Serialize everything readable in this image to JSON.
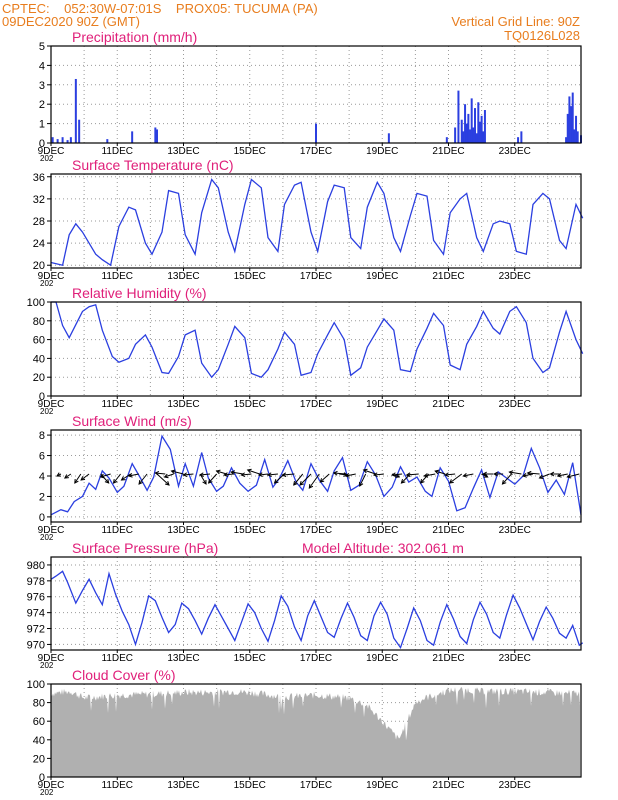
{
  "header": {
    "line1": "CPTEC:    052:30W-07:01S    PROX05: TUCUMA (PA)",
    "line2": "09DEC2020 90Z (GMT)",
    "grid_note": "Vertical Grid Line: 90Z",
    "code": "TQ0126L028"
  },
  "colors": {
    "header": "#e87d1e",
    "title": "#e0207a",
    "series": "#2b3fe0",
    "cloud": "#b0b0b0",
    "grid": "#9a9a9a"
  },
  "x_ticks": [
    "9DEC",
    "11DEC",
    "13DEC",
    "15DEC",
    "17DEC",
    "19DEC",
    "21DEC",
    "23DEC"
  ],
  "year_stub": "202",
  "chart_data": [
    {
      "type": "bar",
      "title": "Precipitation (mm/h)",
      "ylim": [
        0,
        5
      ],
      "yticks": [
        "0",
        "1",
        "2",
        "3",
        "4",
        "5"
      ],
      "x_days": [
        0.05,
        0.2,
        0.35,
        0.5,
        0.6,
        0.75,
        0.85,
        1.7,
        2.45,
        3.15,
        3.2,
        8.0,
        10.2,
        11.95,
        12.2,
        12.3,
        12.4,
        12.45,
        12.5,
        12.55,
        12.6,
        12.65,
        12.7,
        12.75,
        12.8,
        12.85,
        12.9,
        12.95,
        13.0,
        13.05,
        13.1,
        14.1,
        14.2,
        15.55,
        15.6,
        15.65,
        15.7,
        15.75,
        15.8,
        15.85,
        15.9,
        16.0
      ],
      "values": [
        0.3,
        0.2,
        0.3,
        0.15,
        0.3,
        3.3,
        1.2,
        0.2,
        0.6,
        0.8,
        0.7,
        1.0,
        0.5,
        0.3,
        0.8,
        2.7,
        1.2,
        0.6,
        2.0,
        1.0,
        1.5,
        0.7,
        2.3,
        0.8,
        1.8,
        0.5,
        2.1,
        1.1,
        1.4,
        0.6,
        1.7,
        0.3,
        0.6,
        0.3,
        1.5,
        2.4,
        1.9,
        2.6,
        0.7,
        1.4,
        0.6,
        0.4
      ]
    },
    {
      "type": "line",
      "title": "Surface Temperature (nC)",
      "ylim": [
        19.5,
        36.5
      ],
      "yticks": [
        "20",
        "24",
        "28",
        "32",
        "36"
      ],
      "x_days": [
        0,
        0.35,
        0.55,
        0.75,
        0.95,
        1.35,
        1.55,
        1.8,
        2.05,
        2.35,
        2.55,
        2.85,
        3.05,
        3.35,
        3.55,
        3.85,
        4.05,
        4.35,
        4.55,
        4.85,
        5.05,
        5.35,
        5.55,
        5.85,
        6.05,
        6.35,
        6.55,
        6.85,
        7.05,
        7.35,
        7.55,
        7.85,
        8.05,
        8.35,
        8.55,
        8.85,
        9.05,
        9.35,
        9.55,
        9.85,
        10.05,
        10.35,
        10.55,
        10.85,
        11.05,
        11.35,
        11.55,
        11.85,
        12.05,
        12.35,
        12.55,
        12.85,
        13.05,
        13.35,
        13.55,
        13.85,
        14.05,
        14.35,
        14.55,
        14.85,
        15.05,
        15.35,
        15.55,
        15.85,
        16.05
      ],
      "values": [
        20.5,
        20.0,
        25.5,
        27.5,
        26.0,
        22.0,
        21.0,
        20.0,
        27.0,
        30.5,
        30.0,
        24.0,
        22.0,
        26.0,
        33.5,
        33.0,
        25.5,
        22.0,
        29.5,
        35.5,
        34.0,
        26.0,
        22.5,
        31.0,
        35.5,
        34.0,
        25.0,
        22.5,
        31.0,
        34.5,
        35.0,
        26.0,
        22.5,
        31.5,
        34.5,
        34.0,
        25.0,
        23.0,
        30.5,
        35.0,
        33.0,
        25.0,
        22.5,
        29.0,
        33.0,
        32.5,
        24.5,
        22.0,
        29.5,
        32.0,
        33.0,
        25.0,
        22.5,
        27.5,
        28.0,
        27.5,
        22.5,
        22.0,
        31.0,
        33.0,
        32.0,
        24.5,
        23.0,
        31.0,
        28.5
      ]
    },
    {
      "type": "line",
      "title": "Relative Humidity (%)",
      "ylim": [
        0,
        100
      ],
      "yticks": [
        "0",
        "20",
        "40",
        "60",
        "80",
        "100"
      ],
      "x_days": [
        0,
        0.15,
        0.35,
        0.55,
        0.95,
        1.15,
        1.35,
        1.55,
        1.85,
        2.05,
        2.35,
        2.55,
        2.85,
        3.05,
        3.35,
        3.55,
        3.85,
        4.05,
        4.35,
        4.55,
        4.85,
        5.05,
        5.35,
        5.55,
        5.85,
        6.05,
        6.35,
        6.55,
        6.85,
        7.05,
        7.35,
        7.55,
        7.85,
        8.05,
        8.35,
        8.55,
        8.85,
        9.05,
        9.35,
        9.55,
        9.85,
        10.05,
        10.35,
        10.55,
        10.85,
        11.05,
        11.35,
        11.55,
        11.85,
        12.05,
        12.35,
        12.55,
        12.85,
        13.05,
        13.35,
        13.55,
        13.85,
        14.05,
        14.35,
        14.55,
        14.85,
        15.05,
        15.35,
        15.55,
        15.85,
        16.05
      ],
      "values": [
        100,
        100,
        75,
        62,
        90,
        95,
        97,
        70,
        42,
        36,
        40,
        55,
        65,
        52,
        25,
        24,
        42,
        65,
        70,
        35,
        20,
        28,
        55,
        74,
        62,
        24,
        20,
        28,
        50,
        68,
        55,
        22,
        25,
        45,
        65,
        78,
        60,
        22,
        30,
        52,
        70,
        82,
        70,
        28,
        26,
        50,
        72,
        88,
        75,
        33,
        28,
        55,
        74,
        90,
        72,
        66,
        90,
        95,
        78,
        40,
        25,
        30,
        68,
        90,
        60,
        45
      ]
    },
    {
      "type": "line",
      "title": "Surface Wind (m/s)",
      "ylim": [
        -0.5,
        8.5
      ],
      "yticks": [
        "0",
        "2",
        "4",
        "6",
        "8"
      ],
      "x_days": [
        0,
        0.3,
        0.5,
        0.7,
        0.95,
        1.15,
        1.35,
        1.55,
        1.75,
        2.0,
        2.2,
        2.45,
        2.7,
        2.9,
        3.1,
        3.35,
        3.6,
        3.85,
        4.05,
        4.3,
        4.55,
        4.75,
        5.0,
        5.2,
        5.45,
        5.7,
        5.95,
        6.2,
        6.45,
        6.7,
        6.9,
        7.15,
        7.4,
        7.6,
        7.85,
        8.1,
        8.35,
        8.55,
        8.8,
        9.05,
        9.3,
        9.55,
        9.8,
        10.05,
        10.3,
        10.55,
        10.8,
        11.05,
        11.3,
        11.5,
        11.75,
        12.0,
        12.25,
        12.5,
        12.75,
        13.0,
        13.25,
        13.5,
        13.75,
        14.0,
        14.25,
        14.5,
        14.75,
        15.0,
        15.25,
        15.5,
        15.75,
        16.0
      ],
      "values": [
        0.2,
        0.7,
        0.5,
        1.5,
        2.0,
        3.3,
        2.7,
        4.5,
        3.8,
        2.4,
        3.0,
        5.2,
        3.8,
        2.6,
        3.9,
        7.9,
        6.6,
        3.0,
        5.2,
        3.0,
        6.3,
        3.8,
        2.5,
        3.0,
        4.8,
        3.3,
        2.5,
        3.1,
        5.6,
        2.9,
        3.8,
        5.5,
        3.4,
        2.6,
        5.2,
        3.6,
        2.5,
        4.5,
        5.8,
        2.6,
        3.1,
        5.4,
        4.1,
        2.0,
        2.9,
        4.9,
        3.4,
        3.9,
        2.5,
        2.0,
        4.8,
        3.5,
        0.6,
        0.9,
        2.8,
        4.6,
        1.9,
        4.4,
        3.8,
        3.2,
        4.0,
        6.7,
        4.8,
        2.4,
        3.6,
        2.2,
        5.3,
        0.2
      ],
      "arrows": {
        "x_days": [
          0.3,
          0.6,
          0.9,
          1.15,
          1.5,
          1.8,
          2.1,
          2.4,
          2.65,
          2.9,
          3.2,
          3.45,
          3.7,
          4.0,
          4.3,
          4.5,
          4.8,
          5.0,
          5.3,
          5.5,
          5.8,
          6.05,
          6.3,
          6.55,
          6.85,
          7.05,
          7.35,
          7.6,
          7.85,
          8.1,
          8.4,
          8.7,
          8.9,
          9.2,
          9.5,
          9.8,
          10.05,
          10.3,
          10.6,
          10.85,
          11.1,
          11.4,
          11.6,
          11.9,
          12.2,
          12.4,
          12.75,
          13.0,
          13.35,
          13.65,
          13.9,
          14.2,
          14.55,
          14.75,
          15.05,
          15.35,
          15.6,
          15.95
        ],
        "dx": [
          -4,
          -6,
          -6,
          -8,
          8,
          -10,
          -7,
          -9,
          -10,
          -8,
          12,
          -10,
          -9,
          -12,
          -10,
          6,
          -10,
          -8,
          -10,
          -9,
          -12,
          -10,
          -12,
          -9,
          -10,
          -10,
          -12,
          -9,
          -11,
          -10,
          -9,
          8,
          -12,
          -10,
          -6,
          -12,
          -10,
          7,
          -10,
          -9,
          -12,
          -8,
          -11,
          -10,
          -10,
          -12,
          -10,
          6,
          -10,
          -9,
          -9,
          -12,
          -10,
          -12,
          -10,
          -9,
          -10,
          -12
        ],
        "dy": [
          -2,
          -4,
          -9,
          -6,
          -9,
          -3,
          -9,
          -6,
          -2,
          -10,
          -11,
          1,
          -3,
          3,
          -1,
          -10,
          -1,
          -9,
          3,
          -1,
          2,
          -1,
          4,
          -1,
          -1,
          -9,
          -1,
          -11,
          -11,
          -14,
          -8,
          -1,
          1,
          -2,
          -12,
          4,
          -1,
          -3,
          -1,
          -9,
          -1,
          -9,
          -2,
          3,
          -1,
          -9,
          -2,
          -3,
          0,
          0,
          -10,
          2,
          -2,
          1,
          -4,
          0,
          -2,
          -3
        ]
      }
    },
    {
      "type": "line",
      "title": "Surface Pressure (hPa)",
      "annotation": "Model Altitude: 302.061  m",
      "ylim": [
        969.3,
        981
      ],
      "yticks": [
        "970",
        "972",
        "974",
        "976",
        "978",
        "980"
      ],
      "x_days": [
        0,
        0.15,
        0.35,
        0.5,
        0.75,
        0.95,
        1.15,
        1.35,
        1.55,
        1.75,
        1.95,
        2.15,
        2.35,
        2.55,
        2.75,
        2.95,
        3.15,
        3.35,
        3.55,
        3.75,
        3.95,
        4.15,
        4.35,
        4.55,
        4.75,
        4.95,
        5.15,
        5.35,
        5.55,
        5.75,
        5.95,
        6.15,
        6.35,
        6.55,
        6.75,
        6.95,
        7.15,
        7.35,
        7.55,
        7.75,
        7.95,
        8.15,
        8.35,
        8.55,
        8.75,
        8.95,
        9.15,
        9.35,
        9.55,
        9.75,
        9.95,
        10.15,
        10.35,
        10.55,
        10.75,
        10.95,
        11.15,
        11.35,
        11.55,
        11.75,
        11.95,
        12.15,
        12.35,
        12.55,
        12.75,
        12.95,
        13.15,
        13.35,
        13.55,
        13.75,
        13.95,
        14.15,
        14.35,
        14.55,
        14.75,
        14.95,
        15.15,
        15.35,
        15.55,
        15.75,
        15.95,
        16.05
      ],
      "values": [
        978.2,
        978.6,
        979.2,
        977.8,
        975.2,
        976.8,
        978.2,
        976.5,
        975.0,
        978.9,
        976.3,
        974.2,
        972.5,
        970.0,
        972.8,
        976.1,
        975.5,
        973.4,
        971.5,
        972.5,
        975.2,
        974.5,
        973.0,
        971.3,
        973.3,
        975.0,
        973.5,
        972.0,
        970.5,
        972.8,
        975.1,
        974.0,
        972.0,
        970.4,
        973.0,
        976.1,
        974.8,
        972.2,
        970.5,
        973.6,
        975.5,
        973.5,
        971.5,
        970.9,
        973.2,
        975.2,
        973.4,
        971.1,
        970.5,
        973.6,
        975.3,
        973.8,
        970.8,
        969.6,
        972.0,
        974.6,
        973.0,
        970.5,
        969.9,
        972.8,
        975.0,
        973.2,
        971.0,
        970.1,
        973.1,
        975.3,
        973.8,
        971.5,
        970.8,
        973.7,
        976.2,
        974.6,
        972.6,
        970.6,
        972.9,
        974.7,
        973.3,
        971.4,
        970.8,
        972.4,
        969.9,
        970.2
      ]
    },
    {
      "type": "bar",
      "title": "Cloud Cover (%)",
      "ylim": [
        0,
        100
      ],
      "yticks": [
        "0",
        "20",
        "40",
        "60",
        "80",
        "100"
      ],
      "profile_days": [
        0,
        0.6,
        1.0,
        2.0,
        3.0,
        3.5,
        4.0,
        5.0,
        5.4,
        6.0,
        7.0,
        8.0,
        9.0,
        9.5,
        10.0,
        10.5,
        11.0,
        11.3,
        12.0,
        12.5,
        13.0,
        14.0,
        15.0,
        15.5,
        16.0
      ],
      "profile_values": [
        90,
        92,
        85,
        88,
        89,
        90,
        91,
        91,
        92,
        91,
        86,
        88,
        85,
        78,
        60,
        40,
        80,
        85,
        93,
        94,
        92,
        92,
        91,
        90,
        90
      ]
    }
  ]
}
